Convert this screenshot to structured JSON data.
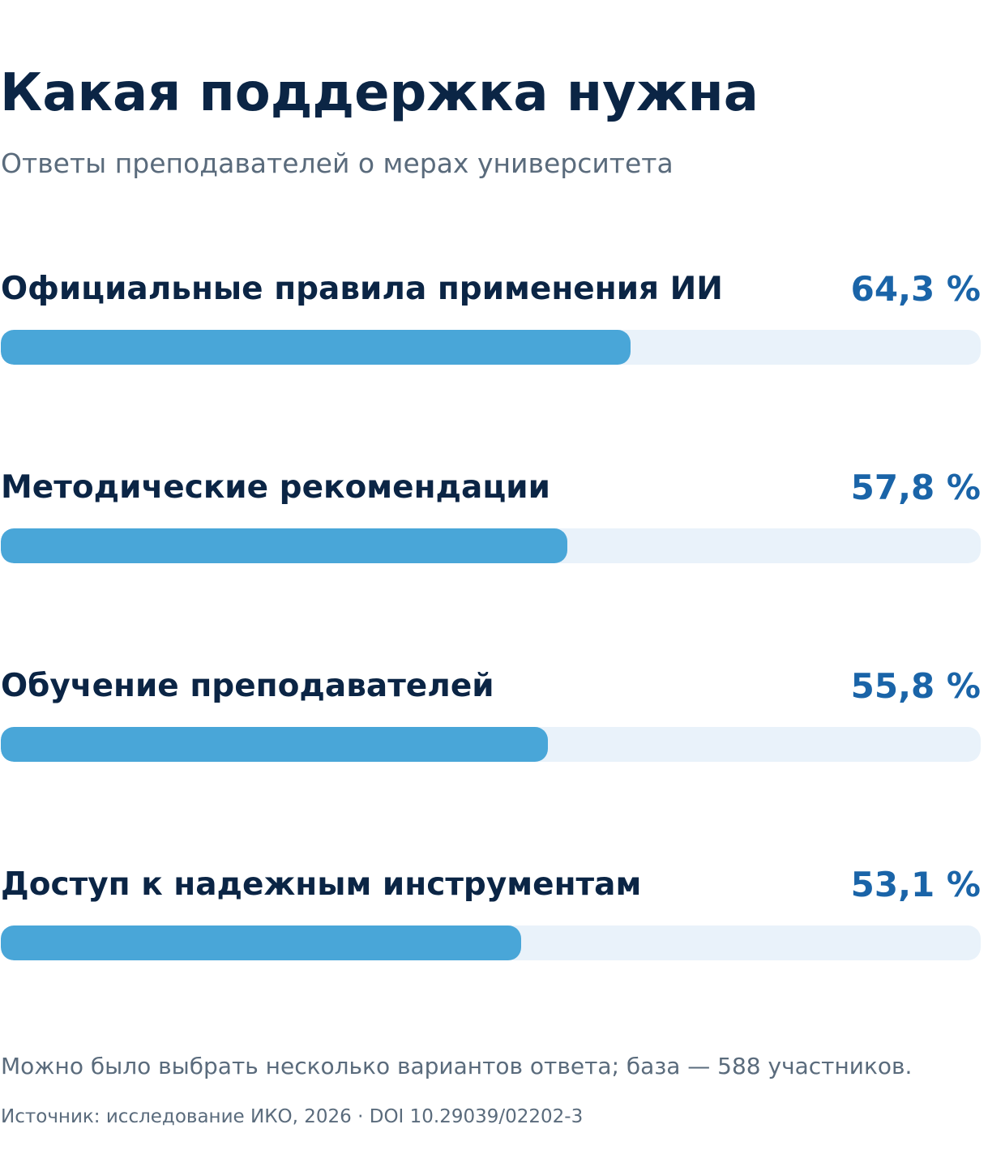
{
  "header": {
    "title": "Какая поддержка нужна",
    "subtitle": "Ответы преподавателей о мерах университета"
  },
  "chart_data": {
    "type": "bar",
    "orientation": "horizontal",
    "categories": [
      "Официальные правила применения ИИ",
      "Методические рекомендации",
      "Обучение преподавателей",
      "Доступ к надежным инструментам"
    ],
    "values": [
      64.3,
      57.8,
      55.8,
      53.1
    ],
    "value_labels": [
      "64,3 %",
      "57,8 %",
      "55,8 %",
      "53,1 %"
    ],
    "unit": "%",
    "xlim": [
      0,
      100
    ],
    "grid": false,
    "legend": "none",
    "colors": {
      "bar": "#49a6d8",
      "track": "#e9f2fa",
      "label": "#0b2545",
      "value": "#1a64a8"
    }
  },
  "footer": {
    "note": "Можно было выбрать несколько вариантов ответа; база — 588 участников.",
    "source": "Источник: исследование ИКО, 2026 · DOI 10.29039/02202-3"
  }
}
